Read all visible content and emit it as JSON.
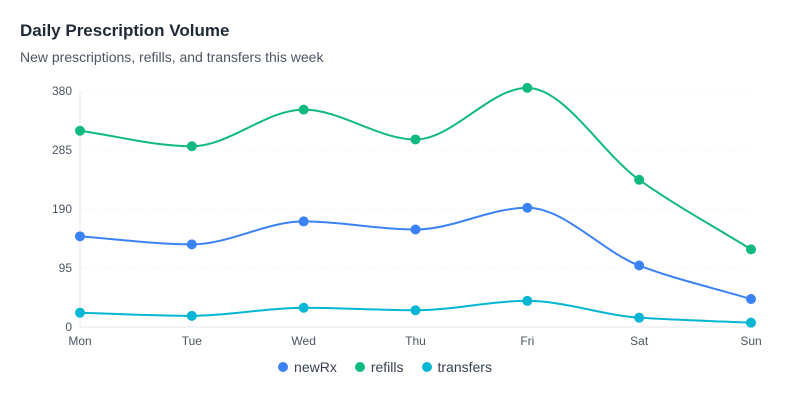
{
  "chart_data": {
    "type": "line",
    "title": "Daily Prescription Volume",
    "subtitle": "New prescriptions, refills, and transfers this week",
    "categories": [
      "Mon",
      "Tue",
      "Wed",
      "Thu",
      "Fri",
      "Sat",
      "Sun"
    ],
    "yticks": [
      0,
      95,
      190,
      285,
      380
    ],
    "ylim": [
      0,
      380
    ],
    "grid": true,
    "legend_position": "bottom",
    "series": [
      {
        "name": "newRx",
        "color": "#3b82f6",
        "values": [
          146,
          133,
          170,
          157,
          192,
          99,
          45
        ]
      },
      {
        "name": "refills",
        "color": "#10b981",
        "values": [
          316,
          291,
          350,
          302,
          385,
          237,
          125
        ]
      },
      {
        "name": "transfers",
        "color": "#06b6d4",
        "values": [
          23,
          18,
          31,
          27,
          42,
          15,
          7
        ]
      }
    ]
  }
}
